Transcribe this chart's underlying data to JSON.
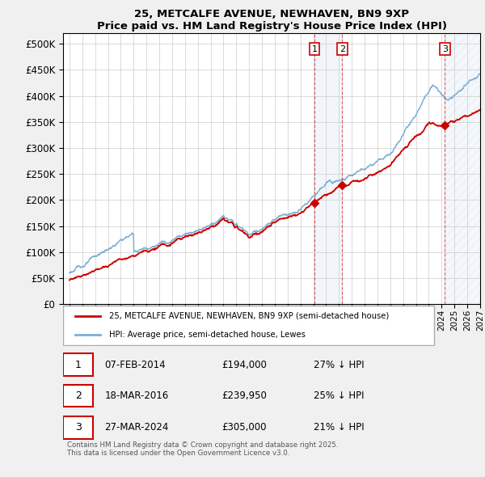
{
  "title": "25, METCALFE AVENUE, NEWHAVEN, BN9 9XP",
  "subtitle": "Price paid vs. HM Land Registry's House Price Index (HPI)",
  "red_label": "25, METCALFE AVENUE, NEWHAVEN, BN9 9XP (semi-detached house)",
  "blue_label": "HPI: Average price, semi-detached house, Lewes",
  "footer": "Contains HM Land Registry data © Crown copyright and database right 2025.\nThis data is licensed under the Open Government Licence v3.0.",
  "transactions": [
    {
      "num": 1,
      "date": "07-FEB-2014",
      "price": "£194,000",
      "pct": "27% ↓ HPI",
      "year": 2014.1
    },
    {
      "num": 2,
      "date": "18-MAR-2016",
      "price": "£239,950",
      "pct": "25% ↓ HPI",
      "year": 2016.25
    },
    {
      "num": 3,
      "date": "27-MAR-2024",
      "price": "£305,000",
      "pct": "21% ↓ HPI",
      "year": 2024.25
    }
  ],
  "ylim": [
    0,
    520000
  ],
  "yticks": [
    0,
    50000,
    100000,
    150000,
    200000,
    250000,
    300000,
    350000,
    400000,
    450000,
    500000
  ],
  "xlim_start": 1994.5,
  "xlim_end": 2027.0,
  "bg_color": "#f0f0f0",
  "plot_bg": "#ffffff",
  "red_color": "#cc0000",
  "blue_color": "#7bafd4",
  "grid_color": "#cccccc"
}
